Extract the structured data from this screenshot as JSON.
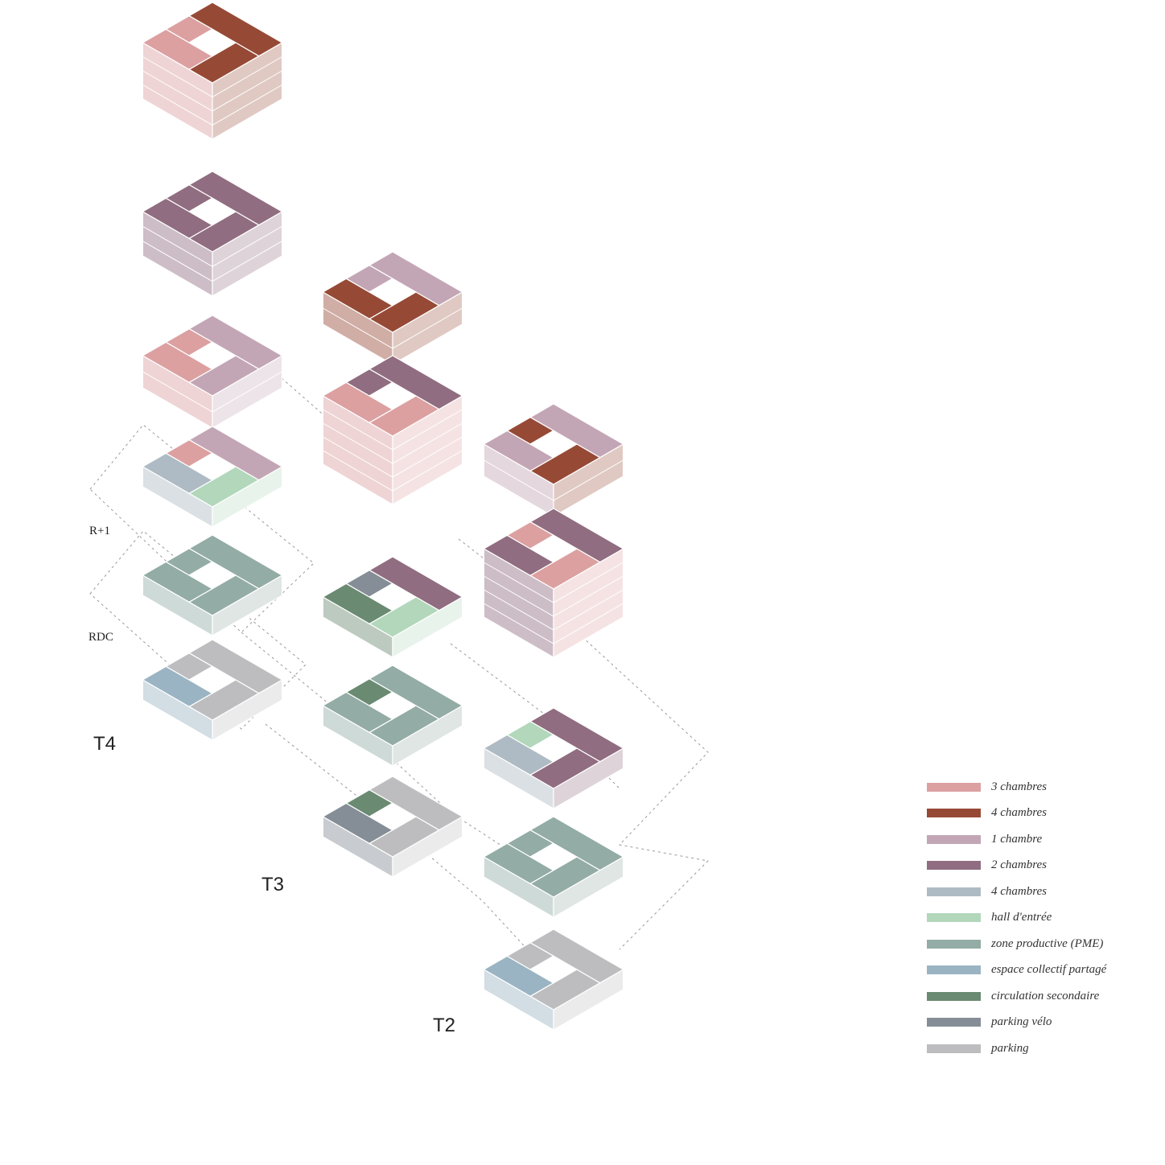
{
  "towers": [
    {
      "label": "T4"
    },
    {
      "label": "T3"
    },
    {
      "label": "T2"
    }
  ],
  "levels": {
    "r1": "R+1",
    "rdc": "RDC"
  },
  "legend": [
    {
      "label": "3 chambres",
      "color": "#dca0a1"
    },
    {
      "label": "4 chambres",
      "color": "#964a36"
    },
    {
      "label": "1 chambre",
      "color": "#c3a6b5"
    },
    {
      "label": "2 chambres",
      "color": "#906d80"
    },
    {
      "label": "4 chambres",
      "color": "#aebbc4"
    },
    {
      "label": "hall d'entrée",
      "color": "#b2d7bb"
    },
    {
      "label": "zone productive (PME)",
      "color": "#93aca5"
    },
    {
      "label": "espace collectif partagé",
      "color": "#9ab4c3"
    },
    {
      "label": "circulation secondaire",
      "color": "#6a8a72"
    },
    {
      "label": "parking vélo",
      "color": "#858e96"
    },
    {
      "label": "parking",
      "color": "#bdbdbf"
    }
  ]
}
